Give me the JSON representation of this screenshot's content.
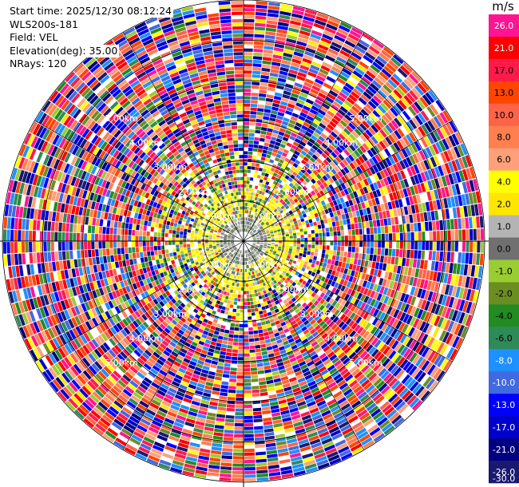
{
  "info": {
    "start_time": "Start time: 2025/12/30 08:12:24",
    "device": "WLS200s-181",
    "field": "Field: VEL",
    "elevation": "Elevation(deg): 35.00",
    "nrays": "NRays: 120"
  },
  "chart_data": {
    "type": "heatmap",
    "projection": "polar-ppi",
    "field": "VEL",
    "n_rays": 120,
    "elevation_deg": 35.0,
    "range_ring_labels": [
      "1.00km",
      "2.00km",
      "3.00km",
      "4.00km",
      "5.00km"
    ],
    "max_range_km": 6.0,
    "colorbar": {
      "unit": "m/s",
      "ticks": [
        "26.0",
        "21.0",
        "17.0",
        "13.0",
        "10.0",
        "8.0",
        "6.0",
        "4.0",
        "2.0",
        "1.0",
        "0.0",
        "-1.0",
        "-2.0",
        "-4.0",
        "-6.0",
        "-8.0",
        "-10.0",
        "-13.0",
        "-17.0",
        "-21.0",
        "-26.0",
        "-30.0"
      ],
      "colors": [
        "#ff1493",
        "#ff0000",
        "#ff1a4a",
        "#ff4500",
        "#ff6347",
        "#ff7f50",
        "#ffa07a",
        "#ffff00",
        "#ffe600",
        "#b4b4b4",
        "#707070",
        "#9acd32",
        "#6b8e23",
        "#228b22",
        "#2e8b57",
        "#1e90ff",
        "#4169e1",
        "#0000ff",
        "#0000cd",
        "#000080",
        "#191970"
      ]
    }
  }
}
